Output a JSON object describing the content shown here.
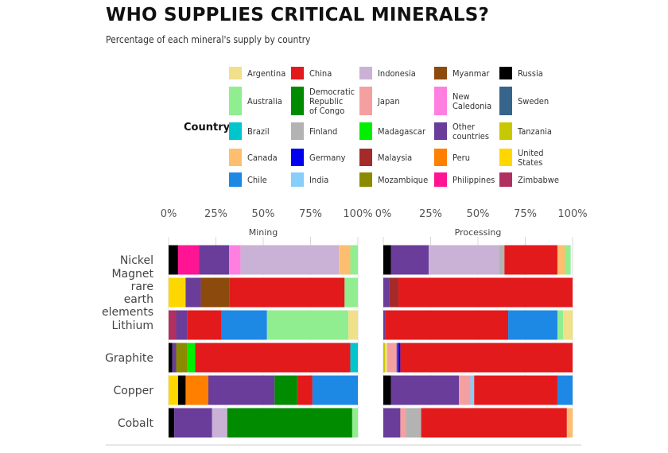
{
  "title": "WHO SUPPLIES CRITICAL MINERALS?",
  "subtitle": "Percentage of each mineral's supply by country",
  "legend": {
    "title": "Country",
    "entries": [
      {
        "label": "Argentina",
        "color": "#f0e08a"
      },
      {
        "label": "China",
        "color": "#e31a1c"
      },
      {
        "label": "Indonesia",
        "color": "#cab2d6"
      },
      {
        "label": "Myanmar",
        "color": "#8c4a0c"
      },
      {
        "label": "Russia",
        "color": "#000000"
      },
      {
        "label": "Australia",
        "color": "#90ee90"
      },
      {
        "label": "Democratic\nRepublic\nof Congo",
        "color": "#008b00"
      },
      {
        "label": "Japan",
        "color": "#f4a0a0"
      },
      {
        "label": "New\nCaledonia",
        "color": "#ff7fe0"
      },
      {
        "label": "Sweden",
        "color": "#36648b"
      },
      {
        "label": "Brazil",
        "color": "#00c5cd"
      },
      {
        "label": "Finland",
        "color": "#b3b3b3"
      },
      {
        "label": "Madagascar",
        "color": "#00ee00"
      },
      {
        "label": "Other\ncountries",
        "color": "#6a3d9a"
      },
      {
        "label": "Tanzania",
        "color": "#c8c800"
      },
      {
        "label": "Canada",
        "color": "#fdbf6f"
      },
      {
        "label": "Germany",
        "color": "#0000ee"
      },
      {
        "label": "Malaysia",
        "color": "#a52a2a"
      },
      {
        "label": "Peru",
        "color": "#ff7f00"
      },
      {
        "label": "United\nStates",
        "color": "#ffd700"
      },
      {
        "label": "Chile",
        "color": "#1e88e5"
      },
      {
        "label": "India",
        "color": "#87cefa"
      },
      {
        "label": "Mozambique",
        "color": "#8b8b00"
      },
      {
        "label": "Philippines",
        "color": "#ff1493"
      },
      {
        "label": "Zimbabwe",
        "color": "#b03060"
      }
    ]
  },
  "chart_data": {
    "type": "bar",
    "orientation": "horizontal",
    "stacked": true,
    "facets": [
      "Mining",
      "Processing"
    ],
    "x_tick_labels": [
      "0%",
      "25%",
      "50%",
      "75%",
      "100%"
    ],
    "xlim": [
      0,
      100
    ],
    "categories": [
      "Nickel",
      "Magnet\nrare\nearth\nelements",
      "Lithium",
      "Graphite",
      "Copper",
      "Cobalt"
    ],
    "data": {
      "Mining": {
        "Nickel": [
          [
            "Russia",
            5
          ],
          [
            "Philippines",
            11
          ],
          [
            "Other countries",
            16
          ],
          [
            "New Caledonia",
            6
          ],
          [
            "Indonesia",
            52
          ],
          [
            "Canada",
            6
          ],
          [
            "Australia",
            4
          ]
        ],
        "Magnet\nrare\nearth\nelements": [
          [
            "United States",
            9
          ],
          [
            "Other countries",
            8
          ],
          [
            "Myanmar",
            15
          ],
          [
            "China",
            61
          ],
          [
            "Australia",
            7
          ]
        ],
        "Lithium": [
          [
            "Zimbabwe",
            4
          ],
          [
            "Other countries",
            6
          ],
          [
            "China",
            18
          ],
          [
            "Chile",
            24
          ],
          [
            "Australia",
            43
          ],
          [
            "Argentina",
            5
          ]
        ],
        "Graphite": [
          [
            "Russia",
            2
          ],
          [
            "Other countries",
            2
          ],
          [
            "Mozambique",
            6
          ],
          [
            "Madagascar",
            4
          ],
          [
            "China",
            82
          ],
          [
            "Brazil",
            4
          ]
        ],
        "Copper": [
          [
            "United States",
            5
          ],
          [
            "Russia",
            4
          ],
          [
            "Peru",
            12
          ],
          [
            "Other countries",
            35
          ],
          [
            "Democratic Republic of Congo",
            12
          ],
          [
            "China",
            8
          ],
          [
            "Chile",
            24
          ]
        ],
        "Cobalt": [
          [
            "Russia",
            3
          ],
          [
            "Other countries",
            20
          ],
          [
            "Indonesia",
            8
          ],
          [
            "Democratic Republic of Congo",
            66
          ],
          [
            "Australia",
            3
          ]
        ]
      },
      "Processing": {
        "Nickel": [
          [
            "Russia",
            4
          ],
          [
            "Other countries",
            20
          ],
          [
            "Indonesia",
            37
          ],
          [
            "Finland",
            3
          ],
          [
            "China",
            28
          ],
          [
            "Canada",
            4
          ],
          [
            "Australia",
            3
          ]
        ],
        "Magnet\nrare\nearth\nelements": [
          [
            "Other countries",
            3
          ],
          [
            "Malaysia",
            5
          ],
          [
            "China",
            92
          ]
        ],
        "Lithium": [
          [
            "Other countries",
            1
          ],
          [
            "China",
            65
          ],
          [
            "Chile",
            26
          ],
          [
            "Australia",
            3
          ],
          [
            "Argentina",
            5
          ]
        ],
        "Graphite": [
          [
            "Tanzania",
            1
          ],
          [
            "Argentina",
            1
          ],
          [
            "Japan",
            5
          ],
          [
            "Other countries",
            1
          ],
          [
            "Germany",
            1
          ],
          [
            "China",
            91
          ]
        ],
        "Copper": [
          [
            "Russia",
            4
          ],
          [
            "Other countries",
            36
          ],
          [
            "Japan",
            6
          ],
          [
            "India",
            2
          ],
          [
            "China",
            44
          ],
          [
            "Chile",
            8
          ]
        ],
        "Cobalt": [
          [
            "Other countries",
            9
          ],
          [
            "Japan",
            3
          ],
          [
            "Finland",
            8
          ],
          [
            "China",
            77
          ],
          [
            "Canada",
            3
          ]
        ]
      }
    }
  }
}
